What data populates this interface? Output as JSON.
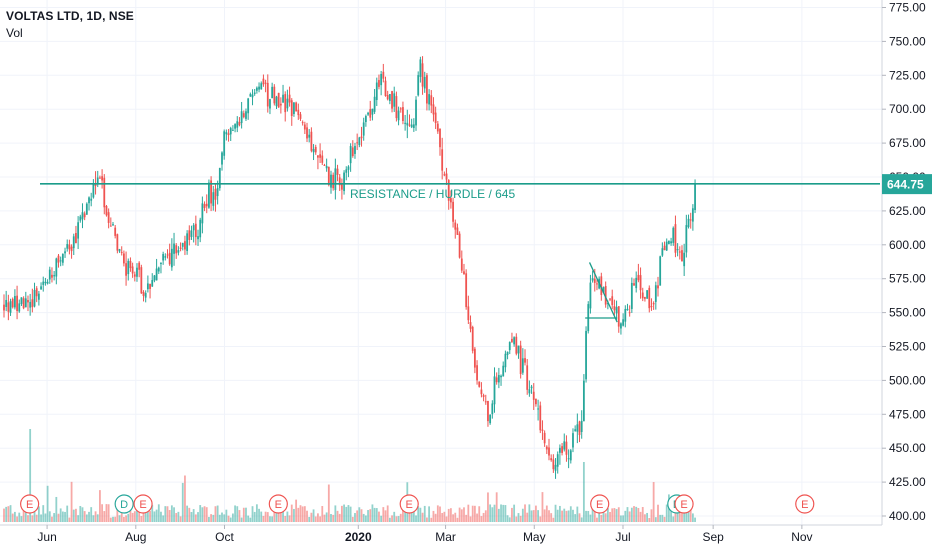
{
  "legend": {
    "symbol": "VOLTAS LTD, 1D, NSE",
    "volume_label": "Vol"
  },
  "colors": {
    "up": "#26a69a",
    "down": "#ef5350",
    "resistance": "#1b9c8a",
    "grid": "#f0f3fa",
    "axis_text": "#131722",
    "earnings": "#ef5350",
    "dividend": "#26a69a"
  },
  "price_badge": "644.75",
  "annotation": "RESISTANCE / HURDLE / 645",
  "events": [
    {
      "label": "E",
      "kind": "earnings",
      "month": "2019-05-20"
    },
    {
      "label": "D",
      "kind": "dividend",
      "month": "2019-07-24"
    },
    {
      "label": "E",
      "kind": "earnings",
      "month": "2019-08-06"
    },
    {
      "label": "E",
      "kind": "earnings",
      "month": "2019-11-07"
    },
    {
      "label": "E",
      "kind": "earnings",
      "month": "2020-02-05"
    },
    {
      "label": "E",
      "kind": "earnings",
      "month": "2020-06-15"
    },
    {
      "label": "D",
      "kind": "dividend",
      "month": "2020-08-07"
    },
    {
      "label": "E",
      "kind": "earnings",
      "month": "2020-08-12"
    },
    {
      "label": "E",
      "kind": "earnings",
      "month": "2020-11-03"
    }
  ],
  "chart_data": {
    "type": "candlestick",
    "title": "VOLTAS LTD, 1D, NSE",
    "ylim": [
      400,
      780
    ],
    "y_ticks": [
      "775.00",
      "750.00",
      "725.00",
      "700.00",
      "675.00",
      "650.00",
      "625.00",
      "600.00",
      "575.00",
      "550.00",
      "525.00",
      "500.00",
      "475.00",
      "450.00",
      "425.00",
      "400.00"
    ],
    "x_tick_labels": [
      "Jun",
      "Aug",
      "Oct",
      "2020",
      "Mar",
      "May",
      "Jul",
      "Sep",
      "Nov"
    ],
    "last_price": 644.75,
    "resistance_level": 645,
    "price_path": [
      [
        "2019-05-20",
        555
      ],
      [
        "2019-06-05",
        580
      ],
      [
        "2019-06-18",
        600
      ],
      [
        "2019-06-27",
        625
      ],
      [
        "2019-07-06",
        650
      ],
      [
        "2019-07-12",
        628
      ],
      [
        "2019-07-20",
        595
      ],
      [
        "2019-07-30",
        578
      ],
      [
        "2019-08-08",
        565
      ],
      [
        "2019-08-18",
        588
      ],
      [
        "2019-09-01",
        600
      ],
      [
        "2019-09-12",
        612
      ],
      [
        "2019-09-20",
        638
      ],
      [
        "2019-09-25",
        628
      ],
      [
        "2019-09-30",
        680
      ],
      [
        "2019-10-10",
        690
      ],
      [
        "2019-10-22",
        715
      ],
      [
        "2019-11-05",
        708
      ],
      [
        "2019-11-18",
        702
      ],
      [
        "2019-12-01",
        670
      ],
      [
        "2019-12-12",
        650
      ],
      [
        "2019-12-20",
        648
      ],
      [
        "2020-01-05",
        692
      ],
      [
        "2020-01-17",
        718
      ],
      [
        "2020-01-28",
        700
      ],
      [
        "2020-02-08",
        688
      ],
      [
        "2020-02-12",
        735
      ],
      [
        "2020-02-22",
        690
      ],
      [
        "2020-02-28",
        662
      ],
      [
        "2020-03-05",
        625
      ],
      [
        "2020-03-13",
        580
      ],
      [
        "2020-03-20",
        520
      ],
      [
        "2020-03-30",
        470
      ],
      [
        "2020-04-06",
        505
      ],
      [
        "2020-04-16",
        530
      ],
      [
        "2020-04-25",
        505
      ],
      [
        "2020-05-02",
        485
      ],
      [
        "2020-05-08",
        455
      ],
      [
        "2020-05-15",
        440
      ],
      [
        "2020-05-25",
        452
      ],
      [
        "2020-06-03",
        465
      ],
      [
        "2020-06-05",
        535
      ],
      [
        "2020-06-10",
        580
      ],
      [
        "2020-06-16",
        570
      ],
      [
        "2020-06-24",
        548
      ],
      [
        "2020-06-30",
        545
      ],
      [
        "2020-07-10",
        570
      ],
      [
        "2020-07-17",
        560
      ],
      [
        "2020-07-21",
        552
      ],
      [
        "2020-07-28",
        590
      ],
      [
        "2020-08-05",
        605
      ],
      [
        "2020-08-10",
        590
      ],
      [
        "2020-08-14",
        612
      ],
      [
        "2020-08-18",
        620
      ],
      [
        "2020-08-21",
        644.75
      ]
    ],
    "volume_spikes": [
      [
        "2019-05-20",
        93
      ],
      [
        "2020-06-04",
        60
      ],
      [
        "2020-08-21",
        45
      ]
    ],
    "trendlines": [
      {
        "from": [
          "2020-06-08",
          587
        ],
        "to": [
          "2020-06-27",
          543
        ]
      },
      {
        "from": [
          "2020-06-05",
          546
        ],
        "to": [
          "2020-06-27",
          546
        ]
      }
    ],
    "grid": true
  }
}
